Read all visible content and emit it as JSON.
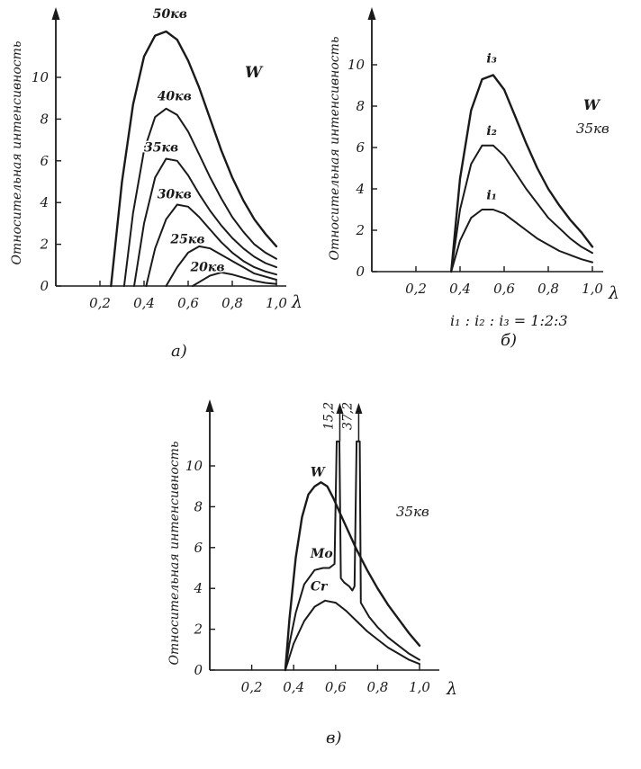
{
  "chart_data": [
    {
      "panel": "a",
      "type": "line",
      "caption": "а)",
      "ylabel": "Относительная интенсивность",
      "xlabel": "λ",
      "annotation": "W",
      "xlim": [
        0,
        1.0
      ],
      "ylim": [
        0,
        12
      ],
      "x_ticks": [
        "0,2",
        "0,4",
        "0,6",
        "0,8",
        "1,0"
      ],
      "y_ticks": [
        "0",
        "2",
        "4",
        "6",
        "8",
        "10"
      ],
      "series": [
        {
          "name": "50кв",
          "points": [
            [
              0.25,
              0
            ],
            [
              0.3,
              5.0
            ],
            [
              0.35,
              8.7
            ],
            [
              0.4,
              11.0
            ],
            [
              0.45,
              12.0
            ],
            [
              0.5,
              12.2
            ],
            [
              0.55,
              11.8
            ],
            [
              0.6,
              10.8
            ],
            [
              0.65,
              9.5
            ],
            [
              0.7,
              8.0
            ],
            [
              0.75,
              6.5
            ],
            [
              0.8,
              5.2
            ],
            [
              0.85,
              4.1
            ],
            [
              0.9,
              3.2
            ],
            [
              0.95,
              2.5
            ],
            [
              1.0,
              1.9
            ]
          ]
        },
        {
          "name": "40кв",
          "points": [
            [
              0.31,
              0
            ],
            [
              0.35,
              3.5
            ],
            [
              0.4,
              6.5
            ],
            [
              0.45,
              8.1
            ],
            [
              0.5,
              8.5
            ],
            [
              0.55,
              8.2
            ],
            [
              0.6,
              7.4
            ],
            [
              0.65,
              6.3
            ],
            [
              0.7,
              5.2
            ],
            [
              0.75,
              4.2
            ],
            [
              0.8,
              3.3
            ],
            [
              0.85,
              2.6
            ],
            [
              0.9,
              2.0
            ],
            [
              0.95,
              1.6
            ],
            [
              1.0,
              1.3
            ]
          ]
        },
        {
          "name": "35кв",
          "points": [
            [
              0.355,
              0
            ],
            [
              0.4,
              3.0
            ],
            [
              0.45,
              5.2
            ],
            [
              0.5,
              6.1
            ],
            [
              0.55,
              6.0
            ],
            [
              0.6,
              5.3
            ],
            [
              0.65,
              4.4
            ],
            [
              0.7,
              3.6
            ],
            [
              0.75,
              2.9
            ],
            [
              0.8,
              2.3
            ],
            [
              0.85,
              1.8
            ],
            [
              0.9,
              1.4
            ],
            [
              0.95,
              1.1
            ],
            [
              1.0,
              0.9
            ]
          ]
        },
        {
          "name": "30кв",
          "points": [
            [
              0.41,
              0
            ],
            [
              0.45,
              1.8
            ],
            [
              0.5,
              3.2
            ],
            [
              0.55,
              3.9
            ],
            [
              0.6,
              3.8
            ],
            [
              0.65,
              3.3
            ],
            [
              0.7,
              2.7
            ],
            [
              0.75,
              2.1
            ],
            [
              0.8,
              1.6
            ],
            [
              0.85,
              1.2
            ],
            [
              0.9,
              0.9
            ],
            [
              0.95,
              0.7
            ],
            [
              1.0,
              0.55
            ]
          ]
        },
        {
          "name": "25кв",
          "points": [
            [
              0.5,
              0
            ],
            [
              0.55,
              0.9
            ],
            [
              0.6,
              1.6
            ],
            [
              0.65,
              1.9
            ],
            [
              0.7,
              1.8
            ],
            [
              0.75,
              1.5
            ],
            [
              0.8,
              1.2
            ],
            [
              0.85,
              0.9
            ],
            [
              0.9,
              0.6
            ],
            [
              0.95,
              0.45
            ],
            [
              1.0,
              0.3
            ]
          ]
        },
        {
          "name": "20кв",
          "points": [
            [
              0.62,
              0
            ],
            [
              0.66,
              0.25
            ],
            [
              0.7,
              0.5
            ],
            [
              0.75,
              0.65
            ],
            [
              0.8,
              0.55
            ],
            [
              0.85,
              0.4
            ],
            [
              0.9,
              0.25
            ],
            [
              0.95,
              0.15
            ],
            [
              1.0,
              0.1
            ]
          ]
        }
      ]
    },
    {
      "panel": "b",
      "type": "line",
      "caption": "б)",
      "ylabel": "Относительная интенсивность",
      "xlabel": "λ",
      "annotation": [
        "W",
        "35кв"
      ],
      "ratio_label": "i₁ : i₂ : i₃ = 1:2:3",
      "xlim": [
        0,
        1.0
      ],
      "ylim": [
        0,
        12
      ],
      "x_ticks": [
        "0,2",
        "0,4",
        "0,6",
        "0,8",
        "1,0"
      ],
      "y_ticks": [
        "0",
        "2",
        "4",
        "6",
        "8",
        "10"
      ],
      "series": [
        {
          "name": "i₃",
          "points": [
            [
              0.36,
              0
            ],
            [
              0.4,
              4.5
            ],
            [
              0.45,
              7.8
            ],
            [
              0.5,
              9.3
            ],
            [
              0.55,
              9.5
            ],
            [
              0.6,
              8.8
            ],
            [
              0.65,
              7.5
            ],
            [
              0.7,
              6.2
            ],
            [
              0.75,
              5.0
            ],
            [
              0.8,
              4.0
            ],
            [
              0.85,
              3.2
            ],
            [
              0.9,
              2.5
            ],
            [
              0.95,
              1.9
            ],
            [
              1.0,
              1.2
            ]
          ]
        },
        {
          "name": "i₂",
          "points": [
            [
              0.36,
              0
            ],
            [
              0.4,
              3.0
            ],
            [
              0.45,
              5.2
            ],
            [
              0.5,
              6.1
            ],
            [
              0.55,
              6.1
            ],
            [
              0.6,
              5.6
            ],
            [
              0.65,
              4.8
            ],
            [
              0.7,
              4.0
            ],
            [
              0.75,
              3.3
            ],
            [
              0.8,
              2.6
            ],
            [
              0.85,
              2.1
            ],
            [
              0.9,
              1.6
            ],
            [
              0.95,
              1.2
            ],
            [
              1.0,
              0.9
            ]
          ]
        },
        {
          "name": "i₁",
          "points": [
            [
              0.36,
              0
            ],
            [
              0.4,
              1.5
            ],
            [
              0.45,
              2.6
            ],
            [
              0.5,
              3.0
            ],
            [
              0.55,
              3.0
            ],
            [
              0.6,
              2.8
            ],
            [
              0.65,
              2.4
            ],
            [
              0.7,
              2.0
            ],
            [
              0.75,
              1.6
            ],
            [
              0.8,
              1.3
            ],
            [
              0.85,
              1.0
            ],
            [
              0.9,
              0.8
            ],
            [
              0.95,
              0.6
            ],
            [
              1.0,
              0.45
            ]
          ]
        }
      ]
    },
    {
      "panel": "c",
      "type": "line",
      "caption": "в)",
      "ylabel": "Относительная интенсивность",
      "xlabel": "λ",
      "annotation": "35кв",
      "xlim": [
        0,
        1.0
      ],
      "ylim": [
        0,
        13
      ],
      "x_ticks": [
        "0,2",
        "0,4",
        "0,6",
        "0,8",
        "1,0"
      ],
      "y_ticks": [
        "0",
        "2",
        "4",
        "6",
        "8",
        "10"
      ],
      "peak_labels": [
        {
          "x": 0.62,
          "text": "15,2"
        },
        {
          "x": 0.71,
          "text": "37,2"
        }
      ],
      "series": [
        {
          "name": "W",
          "points": [
            [
              0.36,
              0
            ],
            [
              0.38,
              2.5
            ],
            [
              0.41,
              5.5
            ],
            [
              0.44,
              7.5
            ],
            [
              0.47,
              8.6
            ],
            [
              0.5,
              9.0
            ],
            [
              0.53,
              9.2
            ],
            [
              0.56,
              9.0
            ],
            [
              0.59,
              8.4
            ],
            [
              0.62,
              7.7
            ],
            [
              0.66,
              6.8
            ],
            [
              0.7,
              5.9
            ],
            [
              0.75,
              4.9
            ],
            [
              0.8,
              4.0
            ],
            [
              0.85,
              3.2
            ],
            [
              0.9,
              2.5
            ],
            [
              0.95,
              1.8
            ],
            [
              1.0,
              1.2
            ]
          ]
        },
        {
          "name": "Mo",
          "points": [
            [
              0.36,
              0
            ],
            [
              0.38,
              1.3
            ],
            [
              0.41,
              2.8
            ],
            [
              0.45,
              4.2
            ],
            [
              0.5,
              4.9
            ],
            [
              0.54,
              5.0
            ],
            [
              0.57,
              5.0
            ],
            [
              0.595,
              5.2
            ],
            [
              0.605,
              11.2
            ],
            [
              0.618,
              11.2
            ],
            [
              0.625,
              4.5
            ],
            [
              0.64,
              4.3
            ],
            [
              0.665,
              4.1
            ],
            [
              0.68,
              3.9
            ],
            [
              0.69,
              4.1
            ],
            [
              0.7,
              11.2
            ],
            [
              0.715,
              11.2
            ],
            [
              0.72,
              3.3
            ],
            [
              0.76,
              2.6
            ],
            [
              0.8,
              2.1
            ],
            [
              0.85,
              1.6
            ],
            [
              0.9,
              1.2
            ],
            [
              0.95,
              0.8
            ],
            [
              1.0,
              0.5
            ]
          ]
        },
        {
          "name": "Cr",
          "points": [
            [
              0.36,
              0
            ],
            [
              0.4,
              1.3
            ],
            [
              0.45,
              2.4
            ],
            [
              0.5,
              3.1
            ],
            [
              0.55,
              3.4
            ],
            [
              0.6,
              3.3
            ],
            [
              0.65,
              2.9
            ],
            [
              0.7,
              2.4
            ],
            [
              0.75,
              1.9
            ],
            [
              0.8,
              1.5
            ],
            [
              0.85,
              1.1
            ],
            [
              0.9,
              0.8
            ],
            [
              0.95,
              0.5
            ],
            [
              1.0,
              0.3
            ]
          ]
        }
      ]
    }
  ]
}
